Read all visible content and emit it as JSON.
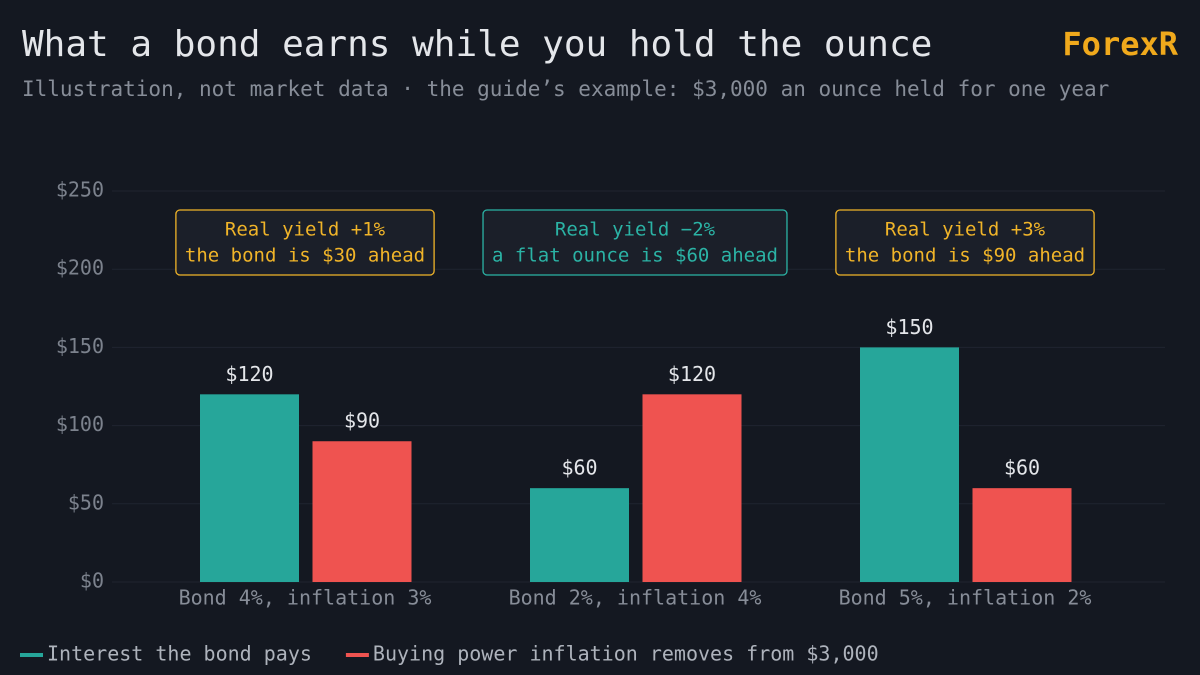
{
  "brand": "ForexR",
  "chart_data": {
    "type": "bar",
    "title": "What a bond earns while you hold the ounce",
    "subtitle": "Illustration, not market data · the guide’s example: $3,000 an ounce held for one year",
    "categories": [
      "Bond 4%, inflation 3%",
      "Bond 2%, inflation 4%",
      "Bond 5%, inflation 2%"
    ],
    "series": [
      {
        "name": "Interest the bond pays",
        "color": "#26a69a",
        "values": [
          120,
          60,
          150
        ],
        "value_labels": [
          "$120",
          "$60",
          "$150"
        ]
      },
      {
        "name": "Buying power inflation removes from $3,000",
        "color": "#ef5350",
        "values": [
          90,
          120,
          60
        ],
        "value_labels": [
          "$90",
          "$120",
          "$60"
        ]
      }
    ],
    "ylim": [
      0,
      250
    ],
    "yticks": [
      {
        "value": 0,
        "label": "$0"
      },
      {
        "value": 50,
        "label": "$50"
      },
      {
        "value": 100,
        "label": "$100"
      },
      {
        "value": 150,
        "label": "$150"
      },
      {
        "value": 200,
        "label": "$200"
      },
      {
        "value": 250,
        "label": "$250"
      }
    ],
    "grid": true,
    "legend": "bottom-left",
    "annotations": [
      {
        "lines": [
          "Real yield +1%",
          "the bond is $30 ahead"
        ],
        "color": "#f0b429"
      },
      {
        "lines": [
          "Real yield −2%",
          "a flat ounce is $60 ahead"
        ],
        "color": "#2bb3a5"
      },
      {
        "lines": [
          "Real yield +3%",
          "the bond is $90 ahead"
        ],
        "color": "#f0b429"
      }
    ]
  }
}
